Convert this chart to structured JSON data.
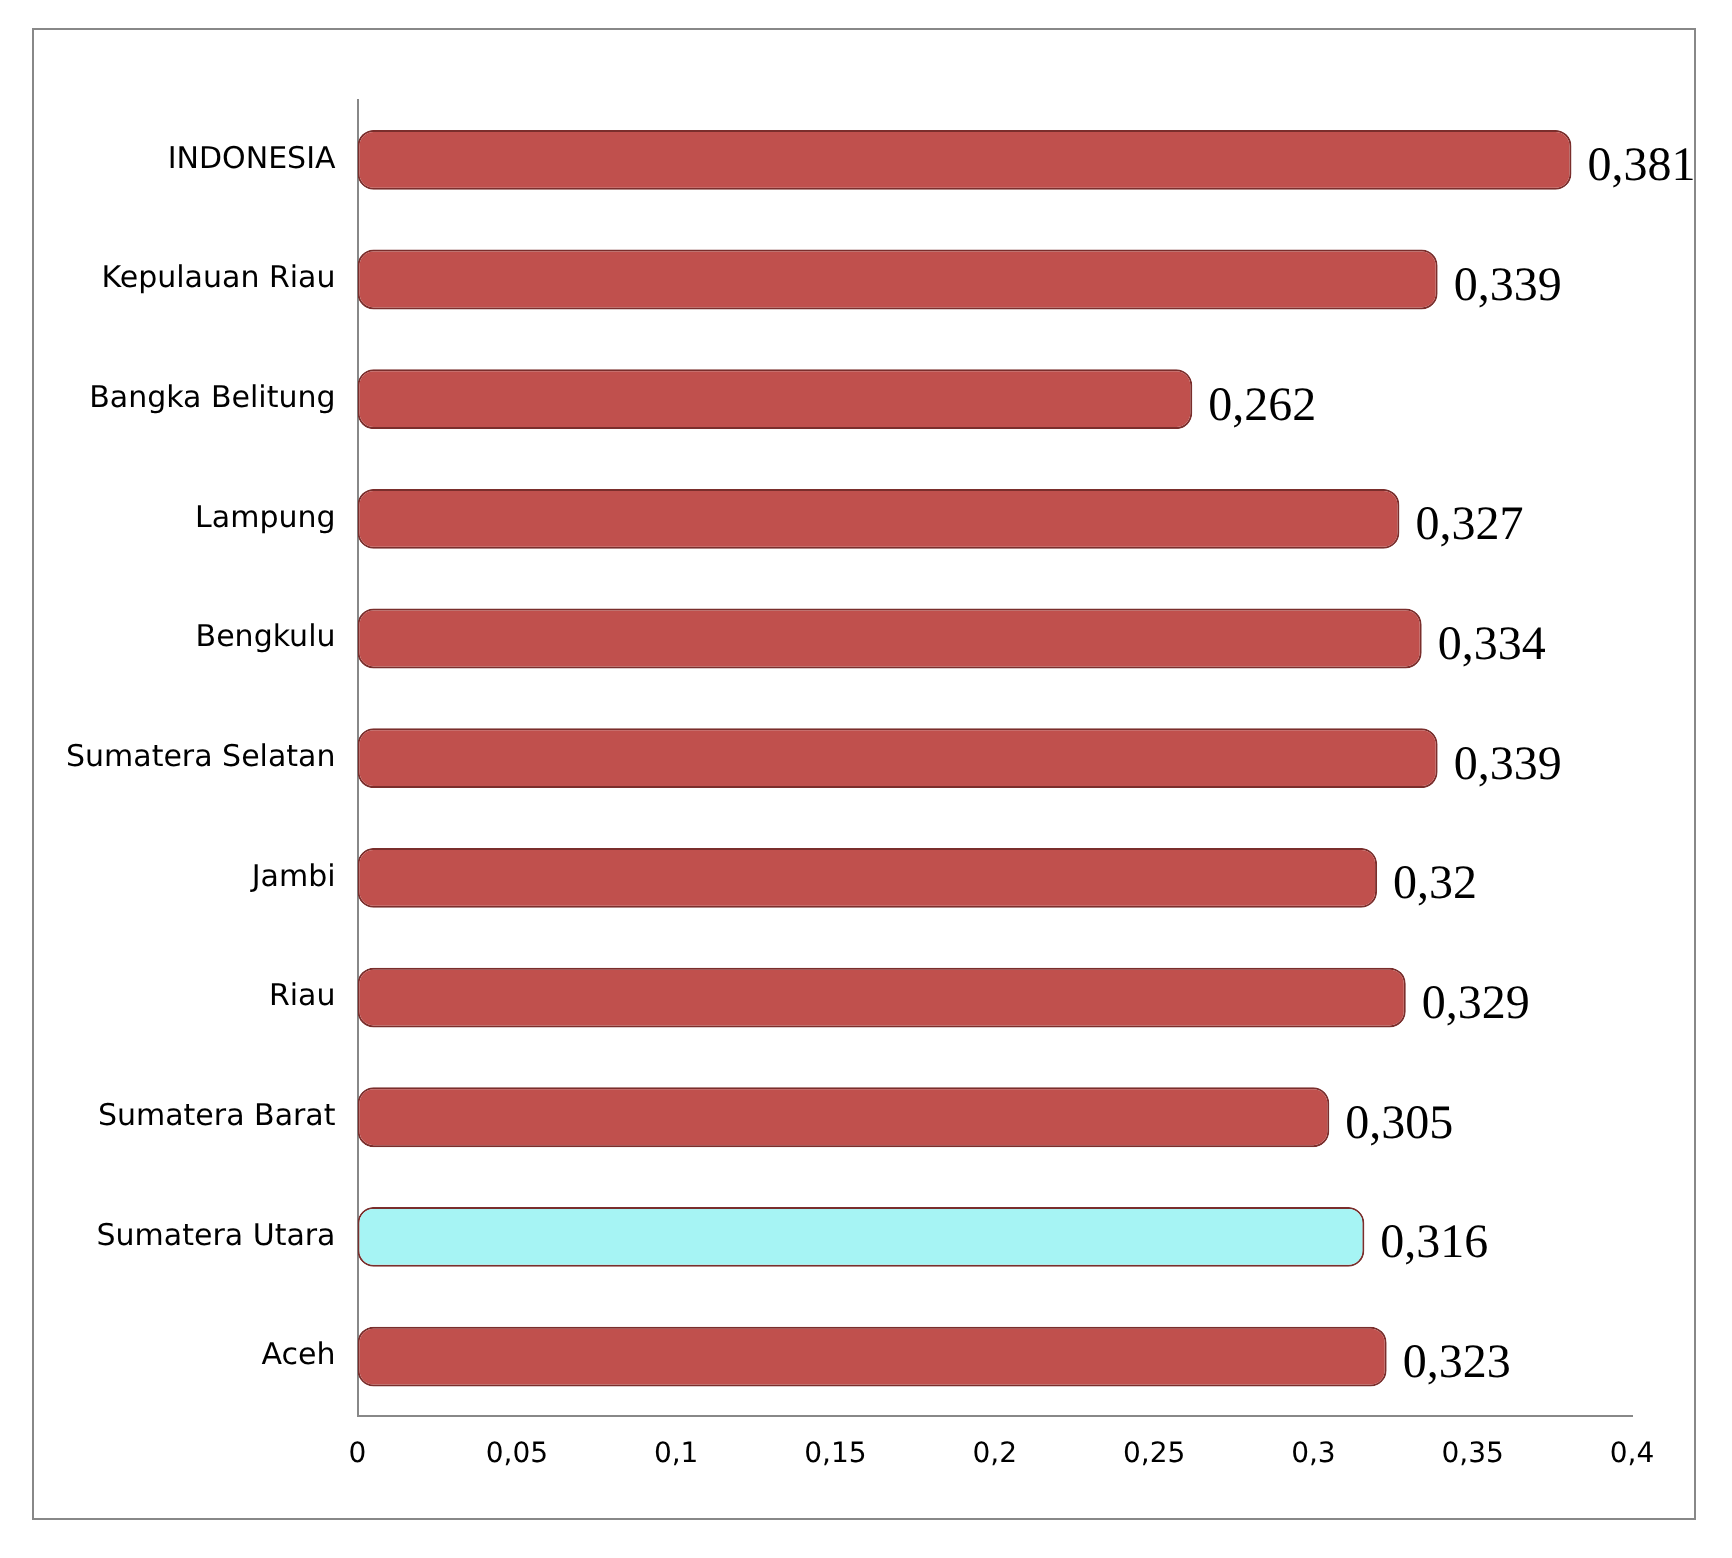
{
  "chart_data": {
    "type": "bar",
    "orientation": "horizontal",
    "categories": [
      "INDONESIA",
      "Kepulauan Riau",
      "Bangka Belitung",
      "Lampung",
      "Bengkulu",
      "Sumatera Selatan",
      "Jambi",
      "Riau",
      "Sumatera Barat",
      "Sumatera Utara",
      "Aceh"
    ],
    "values": [
      0.381,
      0.339,
      0.262,
      0.327,
      0.334,
      0.339,
      0.32,
      0.329,
      0.305,
      0.316,
      0.323
    ],
    "colors": [
      "#c0504d",
      "#c0504d",
      "#c0504d",
      "#c0504d",
      "#c0504d",
      "#c0504d",
      "#c0504d",
      "#c0504d",
      "#c0504d",
      "#a6f4f4",
      "#c0504d"
    ],
    "value_labels": [
      "0,381",
      "0,339",
      "0,262",
      "0,327",
      "0,334",
      "0,339",
      "0,32",
      "0,329",
      "0,305",
      "0,316",
      "0,323"
    ],
    "xlim": [
      0,
      0.4
    ],
    "xticks": [
      0,
      {
        "value": 0.05,
        "label": "0,05"
      },
      {
        "value": 0.1,
        "label": "0,1"
      },
      {
        "value": 0.15,
        "label": "0,15"
      },
      {
        "value": 0.2,
        "label": "0,2"
      },
      {
        "value": 0.25,
        "label": "0,25"
      },
      {
        "value": 0.3,
        "label": "0,3"
      },
      {
        "value": 0.35,
        "label": "0,35"
      },
      {
        "value": 0.4,
        "label": "0,4"
      }
    ],
    "grid": false,
    "legend": false
  }
}
